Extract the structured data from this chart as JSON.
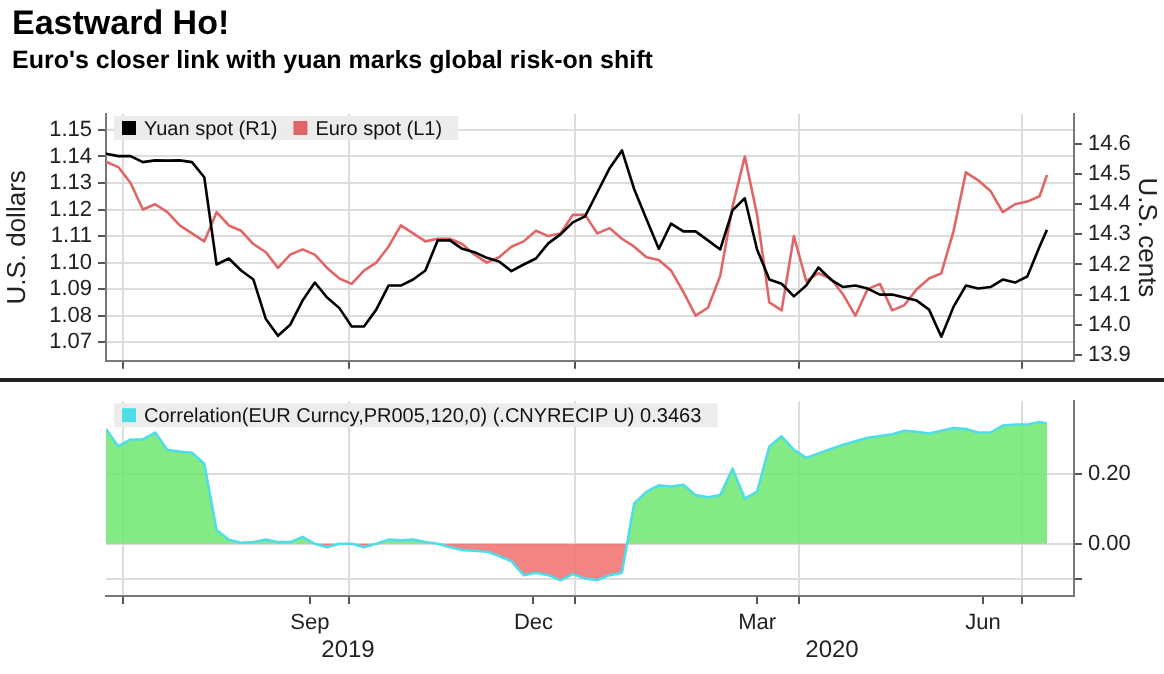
{
  "chart_data": [
    {
      "type": "line",
      "title": "Eastward Ho!",
      "subtitle": "Euro's closer link with yuan marks global risk-on shift",
      "ylabel": "U.S. dollars",
      "y2label": "U.S. cents",
      "x": [
        "2019-06-24",
        "2019-06-29",
        "2019-07-04",
        "2019-07-09",
        "2019-07-14",
        "2019-07-19",
        "2019-07-24",
        "2019-07-29",
        "2019-08-03",
        "2019-08-08",
        "2019-08-13",
        "2019-08-18",
        "2019-08-23",
        "2019-08-28",
        "2019-09-02",
        "2019-09-07",
        "2019-09-12",
        "2019-09-17",
        "2019-09-22",
        "2019-09-27",
        "2019-10-02",
        "2019-10-07",
        "2019-10-12",
        "2019-10-17",
        "2019-10-22",
        "2019-10-27",
        "2019-11-01",
        "2019-11-06",
        "2019-11-11",
        "2019-11-16",
        "2019-11-21",
        "2019-11-26",
        "2019-12-01",
        "2019-12-06",
        "2019-12-11",
        "2019-12-16",
        "2019-12-21",
        "2019-12-26",
        "2019-12-31",
        "2020-01-05",
        "2020-01-10",
        "2020-01-15",
        "2020-01-20",
        "2020-01-25",
        "2020-01-30",
        "2020-02-04",
        "2020-02-09",
        "2020-02-14",
        "2020-02-19",
        "2020-02-24",
        "2020-02-29",
        "2020-03-05",
        "2020-03-10",
        "2020-03-15",
        "2020-03-20",
        "2020-03-25",
        "2020-03-30",
        "2020-04-04",
        "2020-04-09",
        "2020-04-14",
        "2020-04-19",
        "2020-04-24",
        "2020-04-29",
        "2020-05-04",
        "2020-05-09",
        "2020-05-14",
        "2020-05-19",
        "2020-05-24",
        "2020-05-29",
        "2020-06-03",
        "2020-06-08",
        "2020-06-13",
        "2020-06-18",
        "2020-06-23",
        "2020-06-28",
        "2020-07-03",
        "2020-07-08",
        "2020-07-11"
      ],
      "series": [
        {
          "name": "Yuan spot (R1)",
          "color": "#000000",
          "axis": "y2",
          "values": [
            14.568,
            14.56,
            14.56,
            14.54,
            14.546,
            14.545,
            14.546,
            14.54,
            14.49,
            14.2,
            14.22,
            14.18,
            14.15,
            14.02,
            13.963,
            14.0,
            14.08,
            14.14,
            14.09,
            14.055,
            13.994,
            13.994,
            14.05,
            14.13,
            14.13,
            14.15,
            14.18,
            14.28,
            14.28,
            14.252,
            14.241,
            14.222,
            14.21,
            14.178,
            14.2,
            14.22,
            14.27,
            14.3,
            14.34,
            14.36,
            14.44,
            14.52,
            14.579,
            14.45,
            14.35,
            14.252,
            14.336,
            14.31,
            14.31,
            14.28,
            14.25,
            14.38,
            14.42,
            14.25,
            14.15,
            14.136,
            14.094,
            14.13,
            14.19,
            14.15,
            14.125,
            14.13,
            14.12,
            14.1,
            14.1,
            14.09,
            14.08,
            14.05,
            13.96,
            14.06,
            14.13,
            14.12,
            14.125,
            14.15,
            14.14,
            14.16,
            14.26,
            14.315
          ]
        },
        {
          "name": "Euro spot (L1)",
          "color": "#e06666",
          "values": [
            1.138,
            1.136,
            1.13,
            1.12,
            1.122,
            1.119,
            1.114,
            1.111,
            1.108,
            1.119,
            1.114,
            1.112,
            1.107,
            1.104,
            1.098,
            1.103,
            1.105,
            1.103,
            1.098,
            1.094,
            1.092,
            1.097,
            1.1,
            1.106,
            1.114,
            1.111,
            1.108,
            1.109,
            1.109,
            1.107,
            1.103,
            1.1,
            1.102,
            1.106,
            1.108,
            1.112,
            1.11,
            1.111,
            1.118,
            1.118,
            1.111,
            1.113,
            1.109,
            1.106,
            1.102,
            1.101,
            1.097,
            1.089,
            1.08,
            1.083,
            1.095,
            1.121,
            1.14,
            1.118,
            1.085,
            1.082,
            1.11,
            1.093,
            1.096,
            1.094,
            1.088,
            1.08,
            1.09,
            1.092,
            1.082,
            1.084,
            1.09,
            1.094,
            1.096,
            1.112,
            1.134,
            1.131,
            1.127,
            1.119,
            1.122,
            1.123,
            1.125,
            1.133
          ]
        }
      ],
      "xlim": [
        "2019-06-24",
        "2020-07-22"
      ],
      "xticks": [
        {
          "value": "2019-07-01",
          "label": null
        },
        {
          "value": "2019-10-01",
          "label": null
        },
        {
          "value": "2020-01-01",
          "label": null
        },
        {
          "value": "2020-04-01",
          "label": null
        },
        {
          "value": "2020-07-01",
          "label": null
        }
      ],
      "ylim": [
        1.063,
        1.156
      ],
      "yticks": [
        1.07,
        1.08,
        1.09,
        {
          "value": 1.1,
          "label": "1.10"
        },
        1.11,
        1.12,
        1.13,
        1.14,
        1.15
      ],
      "y2lim": [
        13.88,
        14.7
      ],
      "y2ticks": [
        13.9,
        {
          "value": 14,
          "label": "14.0"
        },
        14.1,
        14.2,
        14.3,
        14.4,
        14.5,
        14.6
      ],
      "grid": true,
      "legend": "top left",
      "tick_labels": "y"
    },
    {
      "type": "area",
      "x": [
        "2019-06-24",
        "2019-06-29",
        "2019-07-04",
        "2019-07-09",
        "2019-07-14",
        "2019-07-19",
        "2019-07-24",
        "2019-07-29",
        "2019-08-03",
        "2019-08-08",
        "2019-08-13",
        "2019-08-18",
        "2019-08-23",
        "2019-08-28",
        "2019-09-02",
        "2019-09-07",
        "2019-09-12",
        "2019-09-17",
        "2019-09-22",
        "2019-09-27",
        "2019-10-02",
        "2019-10-07",
        "2019-10-12",
        "2019-10-17",
        "2019-10-22",
        "2019-10-27",
        "2019-11-01",
        "2019-11-06",
        "2019-11-11",
        "2019-11-16",
        "2019-11-21",
        "2019-11-26",
        "2019-12-01",
        "2019-12-06",
        "2019-12-11",
        "2019-12-16",
        "2019-12-21",
        "2019-12-26",
        "2019-12-31",
        "2020-01-05",
        "2020-01-10",
        "2020-01-15",
        "2020-01-20",
        "2020-01-25",
        "2020-01-30",
        "2020-02-04",
        "2020-02-09",
        "2020-02-14",
        "2020-02-19",
        "2020-02-24",
        "2020-02-29",
        "2020-03-05",
        "2020-03-10",
        "2020-03-15",
        "2020-03-20",
        "2020-03-25",
        "2020-03-30",
        "2020-04-04",
        "2020-04-09",
        "2020-04-14",
        "2020-04-19",
        "2020-04-24",
        "2020-04-29",
        "2020-05-04",
        "2020-05-09",
        "2020-05-14",
        "2020-05-19",
        "2020-05-24",
        "2020-05-29",
        "2020-06-03",
        "2020-06-08",
        "2020-06-13",
        "2020-06-18",
        "2020-06-23",
        "2020-06-28",
        "2020-07-03",
        "2020-07-08",
        "2020-07-11"
      ],
      "series": [
        {
          "name": "Correlation(EUR Curncy,PR005,120,0) (.CNYRECIP U) 0.3463",
          "color": "#4fdde8",
          "values": [
            0.33,
            0.28,
            0.3,
            0.3,
            0.32,
            0.27,
            0.265,
            0.262,
            0.23,
            0.04,
            0.012,
            0.003,
            0.005,
            0.012,
            0.005,
            0.005,
            0.02,
            0.0,
            -0.01,
            0.0,
            0.0,
            -0.01,
            0.0,
            0.012,
            0.01,
            0.012,
            0.005,
            0.0,
            -0.01,
            -0.018,
            -0.02,
            -0.023,
            -0.035,
            -0.05,
            -0.09,
            -0.083,
            -0.09,
            -0.105,
            -0.087,
            -0.1,
            -0.104,
            -0.09,
            -0.083,
            0.116,
            0.15,
            0.168,
            0.165,
            0.17,
            0.14,
            0.134,
            0.14,
            0.216,
            0.13,
            0.15,
            0.28,
            0.309,
            0.27,
            0.247,
            0.26,
            0.273,
            0.285,
            0.295,
            0.305,
            0.31,
            0.315,
            0.325,
            0.322,
            0.317,
            0.325,
            0.333,
            0.33,
            0.32,
            0.32,
            0.34,
            0.343,
            0.343,
            0.35,
            0.346
          ]
        }
      ],
      "xlim": [
        "2019-06-24",
        "2020-07-22"
      ],
      "xticks": [
        {
          "value": "2019-07-01",
          "label": null
        },
        {
          "value": "2019-09-15",
          "label": "Sep"
        },
        {
          "value": "2019-10-01",
          "label": null
        },
        {
          "value": "2019-12-15",
          "label": "Dec"
        },
        {
          "value": "2020-01-01",
          "label": null
        },
        {
          "value": "2020-03-15",
          "label": "Mar"
        },
        {
          "value": "2020-04-01",
          "label": null
        },
        {
          "value": "2020-06-15",
          "label": "Jun"
        },
        {
          "value": "2020-07-01",
          "label": null
        }
      ],
      "ylim": [
        -0.15,
        0.41
      ],
      "yticks": [
        {
          "value": -0.1,
          "label": null
        },
        {
          "value": 0,
          "label": "0.00"
        },
        {
          "value": 0.2,
          "label": "0.20"
        }
      ],
      "annotations": [
        "2019",
        "2020"
      ],
      "grid": true,
      "legend": "top left"
    }
  ]
}
